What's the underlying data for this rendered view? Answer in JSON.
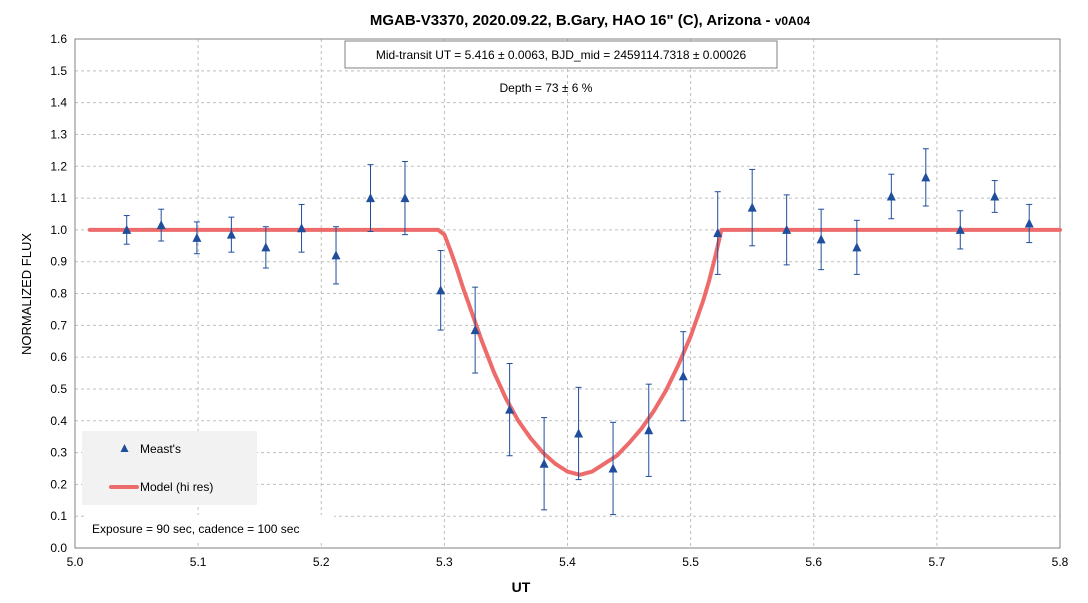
{
  "chart_data": {
    "type": "scatter",
    "title": "MGAB-V3370, 2020.09.22, B.Gary, HAO 16\" (C), Arizona - ",
    "title_suffix": "v0A04",
    "xlabel": "UT",
    "ylabel": "NORMALIZED FLUX",
    "xlim": [
      5.0,
      5.8
    ],
    "ylim": [
      0.0,
      1.6
    ],
    "x_ticks": [
      "5.0",
      "5.1",
      "5.2",
      "5.3",
      "5.4",
      "5.5",
      "5.6",
      "5.7",
      "5.8"
    ],
    "y_ticks": [
      "0.0",
      "0.1",
      "0.2",
      "0.3",
      "0.4",
      "0.5",
      "0.6",
      "0.7",
      "0.8",
      "0.9",
      "1.0",
      "1.1",
      "1.2",
      "1.3",
      "1.4",
      "1.5",
      "1.6"
    ],
    "grid": true,
    "legend_position": "bottom-left",
    "annotations": {
      "midtransit": "Mid-transit UT = 5.416 ± 0.0063, BJD_mid = 2459114.7318 ± 0.00026",
      "depth": "Depth = 73 ± 6 %",
      "exposure": "Exposure = 90 sec, cadence = 100 sec"
    },
    "series": [
      {
        "name": "Meast's",
        "kind": "marker",
        "color": "#1f4e9c",
        "x": [
          5.042,
          5.07,
          5.099,
          5.127,
          5.155,
          5.184,
          5.212,
          5.24,
          5.268,
          5.297,
          5.325,
          5.353,
          5.381,
          5.409,
          5.437,
          5.466,
          5.494,
          5.522,
          5.55,
          5.578,
          5.606,
          5.635,
          5.663,
          5.691,
          5.719,
          5.747,
          5.775
        ],
        "y": [
          1.0,
          1.015,
          0.975,
          0.985,
          0.945,
          1.005,
          0.92,
          1.1,
          1.1,
          0.81,
          0.685,
          0.435,
          0.265,
          0.36,
          0.25,
          0.37,
          0.54,
          0.99,
          1.07,
          1.0,
          0.97,
          0.945,
          1.105,
          1.165,
          1.0,
          1.105,
          1.02
        ],
        "err": [
          0.045,
          0.05,
          0.05,
          0.055,
          0.065,
          0.075,
          0.09,
          0.105,
          0.115,
          0.125,
          0.135,
          0.145,
          0.145,
          0.145,
          0.145,
          0.145,
          0.14,
          0.13,
          0.12,
          0.11,
          0.095,
          0.085,
          0.07,
          0.09,
          0.06,
          0.05,
          0.06
        ]
      },
      {
        "name": "Model (hi res)",
        "kind": "line",
        "color": "#ee6b6b",
        "x": [
          5.012,
          5.295,
          5.3,
          5.305,
          5.31,
          5.315,
          5.32,
          5.33,
          5.34,
          5.35,
          5.36,
          5.37,
          5.38,
          5.39,
          5.4,
          5.41,
          5.42,
          5.43,
          5.44,
          5.45,
          5.46,
          5.47,
          5.48,
          5.49,
          5.5,
          5.51,
          5.515,
          5.52,
          5.525,
          5.8
        ],
        "y": [
          1.0,
          1.0,
          0.985,
          0.935,
          0.88,
          0.82,
          0.765,
          0.655,
          0.555,
          0.47,
          0.4,
          0.345,
          0.3,
          0.265,
          0.24,
          0.23,
          0.24,
          0.265,
          0.29,
          0.33,
          0.375,
          0.43,
          0.495,
          0.575,
          0.665,
          0.775,
          0.84,
          0.915,
          1.0,
          1.0
        ]
      }
    ]
  }
}
